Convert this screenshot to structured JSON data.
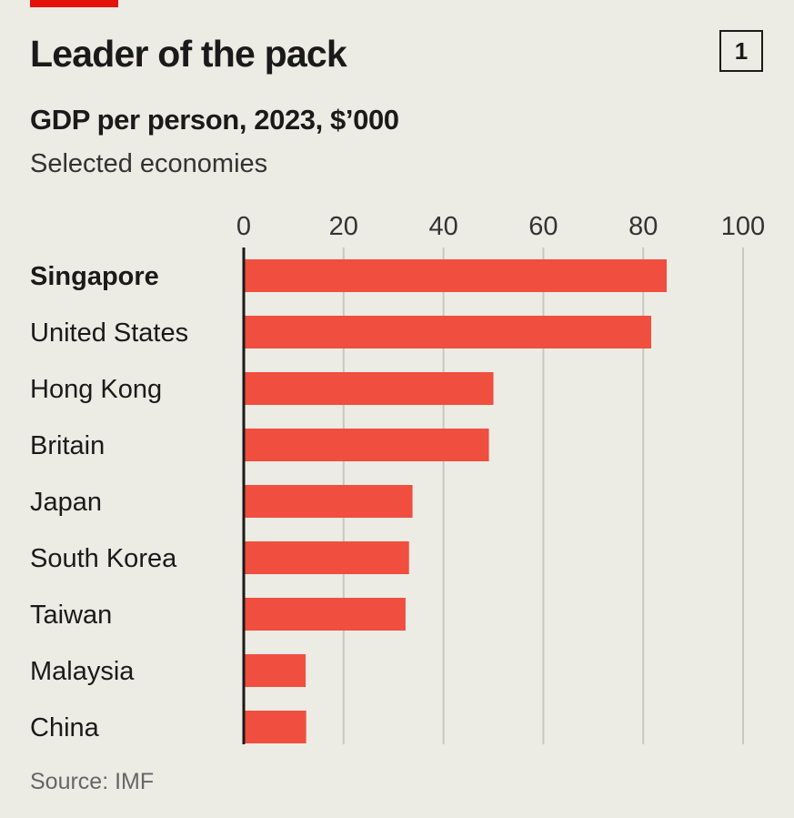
{
  "header": {
    "badge": "1"
  },
  "colors": {
    "bar": "#f04e3e",
    "accent": "#e3120b",
    "gridline": "#c9c8c0",
    "axis": "#1a1a1a",
    "background": "#ecebe4"
  },
  "source": "Source: IMF",
  "chart_data": {
    "type": "bar",
    "orientation": "horizontal",
    "title": "Leader of the pack",
    "subtitle": "GDP per person, 2023, $’000",
    "note": "Selected economies",
    "categories": [
      "Singapore",
      "United States",
      "Hong Kong",
      "Britain",
      "Japan",
      "South Korea",
      "Taiwan",
      "Malaysia",
      "China"
    ],
    "highlight": "Singapore",
    "values": [
      84.7,
      81.6,
      50.0,
      49.1,
      33.8,
      33.1,
      32.4,
      12.4,
      12.5
    ],
    "xlim": [
      0,
      100
    ],
    "xticks": [
      0,
      20,
      40,
      60,
      80,
      100
    ],
    "xaxis_position": "top",
    "grid": true
  }
}
